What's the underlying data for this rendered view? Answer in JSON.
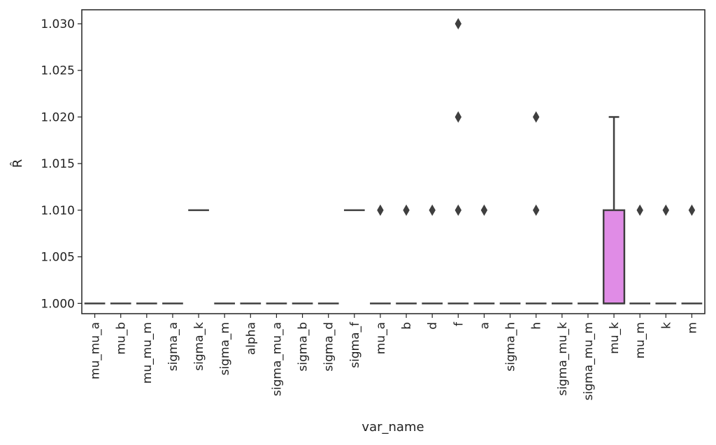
{
  "chart_data": {
    "type": "box",
    "xlabel": "var_name",
    "ylabel": "R̂",
    "ylim": [
      0.9989,
      1.0315
    ],
    "yticks": [
      "1.000",
      "1.005",
      "1.010",
      "1.015",
      "1.020",
      "1.025",
      "1.030"
    ],
    "categories": [
      "mu_mu_a",
      "mu_b",
      "mu_mu_m",
      "sigma_a",
      "sigma_k",
      "sigma_m",
      "alpha",
      "sigma_mu_a",
      "sigma_b",
      "sigma_d",
      "sigma_f",
      "mu_a",
      "b",
      "d",
      "f",
      "a",
      "sigma_h",
      "h",
      "sigma_mu_k",
      "sigma_mu_m",
      "mu_k",
      "mu_m",
      "k",
      "m"
    ],
    "boxes": [
      {
        "name": "mu_mu_a",
        "q1": 1.0,
        "median": 1.0,
        "q3": 1.0,
        "whisker_low": 1.0,
        "whisker_high": 1.0,
        "outliers": []
      },
      {
        "name": "mu_b",
        "q1": 1.0,
        "median": 1.0,
        "q3": 1.0,
        "whisker_low": 1.0,
        "whisker_high": 1.0,
        "outliers": []
      },
      {
        "name": "mu_mu_m",
        "q1": 1.0,
        "median": 1.0,
        "q3": 1.0,
        "whisker_low": 1.0,
        "whisker_high": 1.0,
        "outliers": []
      },
      {
        "name": "sigma_a",
        "q1": 1.0,
        "median": 1.0,
        "q3": 1.0,
        "whisker_low": 1.0,
        "whisker_high": 1.0,
        "outliers": []
      },
      {
        "name": "sigma_k",
        "q1": 1.01,
        "median": 1.01,
        "q3": 1.01,
        "whisker_low": 1.01,
        "whisker_high": 1.01,
        "outliers": []
      },
      {
        "name": "sigma_m",
        "q1": 1.0,
        "median": 1.0,
        "q3": 1.0,
        "whisker_low": 1.0,
        "whisker_high": 1.0,
        "outliers": []
      },
      {
        "name": "alpha",
        "q1": 1.0,
        "median": 1.0,
        "q3": 1.0,
        "whisker_low": 1.0,
        "whisker_high": 1.0,
        "outliers": []
      },
      {
        "name": "sigma_mu_a",
        "q1": 1.0,
        "median": 1.0,
        "q3": 1.0,
        "whisker_low": 1.0,
        "whisker_high": 1.0,
        "outliers": []
      },
      {
        "name": "sigma_b",
        "q1": 1.0,
        "median": 1.0,
        "q3": 1.0,
        "whisker_low": 1.0,
        "whisker_high": 1.0,
        "outliers": []
      },
      {
        "name": "sigma_d",
        "q1": 1.0,
        "median": 1.0,
        "q3": 1.0,
        "whisker_low": 1.0,
        "whisker_high": 1.0,
        "outliers": []
      },
      {
        "name": "sigma_f",
        "q1": 1.01,
        "median": 1.01,
        "q3": 1.01,
        "whisker_low": 1.01,
        "whisker_high": 1.01,
        "outliers": []
      },
      {
        "name": "mu_a",
        "q1": 1.0,
        "median": 1.0,
        "q3": 1.0,
        "whisker_low": 1.0,
        "whisker_high": 1.0,
        "outliers": [
          1.01
        ]
      },
      {
        "name": "b",
        "q1": 1.0,
        "median": 1.0,
        "q3": 1.0,
        "whisker_low": 1.0,
        "whisker_high": 1.0,
        "outliers": [
          1.01
        ]
      },
      {
        "name": "d",
        "q1": 1.0,
        "median": 1.0,
        "q3": 1.0,
        "whisker_low": 1.0,
        "whisker_high": 1.0,
        "outliers": [
          1.01
        ]
      },
      {
        "name": "f",
        "q1": 1.0,
        "median": 1.0,
        "q3": 1.0,
        "whisker_low": 1.0,
        "whisker_high": 1.0,
        "outliers": [
          1.01,
          1.02,
          1.03
        ]
      },
      {
        "name": "a",
        "q1": 1.0,
        "median": 1.0,
        "q3": 1.0,
        "whisker_low": 1.0,
        "whisker_high": 1.0,
        "outliers": [
          1.01
        ]
      },
      {
        "name": "sigma_h",
        "q1": 1.0,
        "median": 1.0,
        "q3": 1.0,
        "whisker_low": 1.0,
        "whisker_high": 1.0,
        "outliers": []
      },
      {
        "name": "h",
        "q1": 1.0,
        "median": 1.0,
        "q3": 1.0,
        "whisker_low": 1.0,
        "whisker_high": 1.0,
        "outliers": [
          1.01,
          1.02
        ]
      },
      {
        "name": "sigma_mu_k",
        "q1": 1.0,
        "median": 1.0,
        "q3": 1.0,
        "whisker_low": 1.0,
        "whisker_high": 1.0,
        "outliers": []
      },
      {
        "name": "sigma_mu_m",
        "q1": 1.0,
        "median": 1.0,
        "q3": 1.0,
        "whisker_low": 1.0,
        "whisker_high": 1.0,
        "outliers": []
      },
      {
        "name": "mu_k",
        "q1": 1.0,
        "median": 1.0,
        "q3": 1.01,
        "whisker_low": 1.0,
        "whisker_high": 1.02,
        "outliers": []
      },
      {
        "name": "mu_m",
        "q1": 1.0,
        "median": 1.0,
        "q3": 1.0,
        "whisker_low": 1.0,
        "whisker_high": 1.0,
        "outliers": [
          1.01
        ]
      },
      {
        "name": "k",
        "q1": 1.0,
        "median": 1.0,
        "q3": 1.0,
        "whisker_low": 1.0,
        "whisker_high": 1.0,
        "outliers": [
          1.01
        ]
      },
      {
        "name": "m",
        "q1": 1.0,
        "median": 1.0,
        "q3": 1.0,
        "whisker_low": 1.0,
        "whisker_high": 1.0,
        "outliers": [
          1.01
        ]
      }
    ],
    "colors": {
      "box_fill_highlight": "#e08ce6",
      "line": "#3f3f3f",
      "frame": "#222222"
    },
    "grid": false,
    "legend": "none"
  }
}
